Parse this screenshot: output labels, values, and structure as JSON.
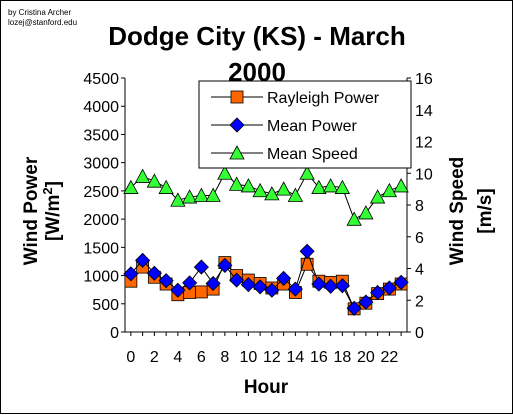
{
  "credit": {
    "author": "by Cristina Archer",
    "email": "lozej@stanford.edu"
  },
  "chart_data": {
    "type": "line",
    "title": "Dodge City (KS) - March 2000",
    "title_line1": "Dodge City (KS) - March",
    "title_line2": "2000",
    "xlabel": "Hour",
    "ylabel_left_line1": "Wind Power",
    "ylabel_left_line2": "[W/m",
    "ylabel_left_sup": "2",
    "ylabel_left_close": "]",
    "ylabel_right_line1": "Wind Speed",
    "ylabel_right_line2": "[m/s]",
    "x": [
      0,
      1,
      2,
      3,
      4,
      5,
      6,
      7,
      8,
      9,
      10,
      11,
      12,
      13,
      14,
      15,
      16,
      17,
      18,
      19,
      20,
      21,
      22,
      23
    ],
    "x_tick_labels": [
      "0",
      "2",
      "4",
      "6",
      "8",
      "10",
      "12",
      "14",
      "16",
      "18",
      "20",
      "22"
    ],
    "x_tick_values": [
      0,
      2,
      4,
      6,
      8,
      10,
      12,
      14,
      16,
      18,
      20,
      22
    ],
    "xlim": [
      -0.5,
      23.5
    ],
    "ylim_left": [
      0,
      4500
    ],
    "yticks_left": [
      "0",
      "500",
      "1000",
      "1500",
      "2000",
      "2500",
      "3000",
      "3500",
      "4000",
      "4500"
    ],
    "ylim_right": [
      0,
      16
    ],
    "yticks_right": [
      "0",
      "2",
      "4",
      "6",
      "8",
      "10",
      "12",
      "14",
      "16"
    ],
    "legend_position": "top-right",
    "grid": false,
    "series": [
      {
        "name": "Rayleigh Power",
        "axis": "left",
        "marker": "square",
        "color": "#FF6600",
        "values": [
          900,
          1150,
          970,
          850,
          660,
          700,
          710,
          760,
          1230,
          1000,
          920,
          860,
          780,
          850,
          700,
          1200,
          900,
          880,
          900,
          410,
          510,
          680,
          760,
          850
        ]
      },
      {
        "name": "Mean Power",
        "axis": "left",
        "marker": "diamond",
        "color": "#0000FF",
        "values": [
          1030,
          1270,
          1040,
          910,
          740,
          870,
          1150,
          860,
          1180,
          920,
          840,
          800,
          740,
          950,
          760,
          1430,
          850,
          810,
          820,
          420,
          530,
          700,
          780,
          880
        ]
      },
      {
        "name": "Mean Speed",
        "axis": "right",
        "marker": "triangle",
        "color": "#33FF33",
        "values": [
          9.1,
          9.8,
          9.5,
          9.1,
          8.3,
          8.5,
          8.6,
          8.6,
          10.0,
          9.3,
          9.2,
          8.9,
          8.7,
          9.0,
          8.6,
          10.0,
          9.1,
          9.2,
          9.1,
          7.1,
          7.5,
          8.5,
          8.9,
          9.2
        ]
      }
    ]
  }
}
